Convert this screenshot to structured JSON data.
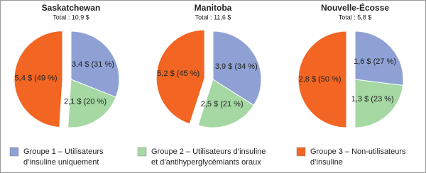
{
  "legend": {
    "items": [
      {
        "label": [
          "Groupe 1 – Utilisateurs",
          "d’insuline uniquement"
        ],
        "color": "#8fa1d4"
      },
      {
        "label": [
          "Groupe 2 – Utilisateurs d’insuline",
          "et d’antihyperglycémiants oraux"
        ],
        "color": "#a5d8a2"
      },
      {
        "label": [
          "Groupe 3 – Non-utilisateurs",
          "d’insuline"
        ],
        "color": "#f26522"
      }
    ]
  },
  "chart_data": [
    {
      "type": "pie",
      "title": "Saskatchewan",
      "subtitle": "Total : 10,9 $",
      "values": [
        31,
        20,
        49
      ],
      "value_labels": [
        "3,4 $ (31 %)",
        "2,1 $ (20 %)",
        "5,4 $ (49 %)"
      ]
    },
    {
      "type": "pie",
      "title": "Manitoba",
      "subtitle": "Total : 11,6 $",
      "values": [
        34,
        21,
        45
      ],
      "value_labels": [
        "3,9 $ (34 %)",
        "2,5 $ (21 %)",
        "5,2 $ (45 %)"
      ]
    },
    {
      "type": "pie",
      "title": "Nouvelle-Écosse",
      "subtitle": "Total : 5,8 $",
      "values": [
        27,
        23,
        50
      ],
      "value_labels": [
        "1,6 $ (27 %)",
        "1,3 $ (23 %)",
        "2,8 $ (50 %)"
      ]
    }
  ]
}
